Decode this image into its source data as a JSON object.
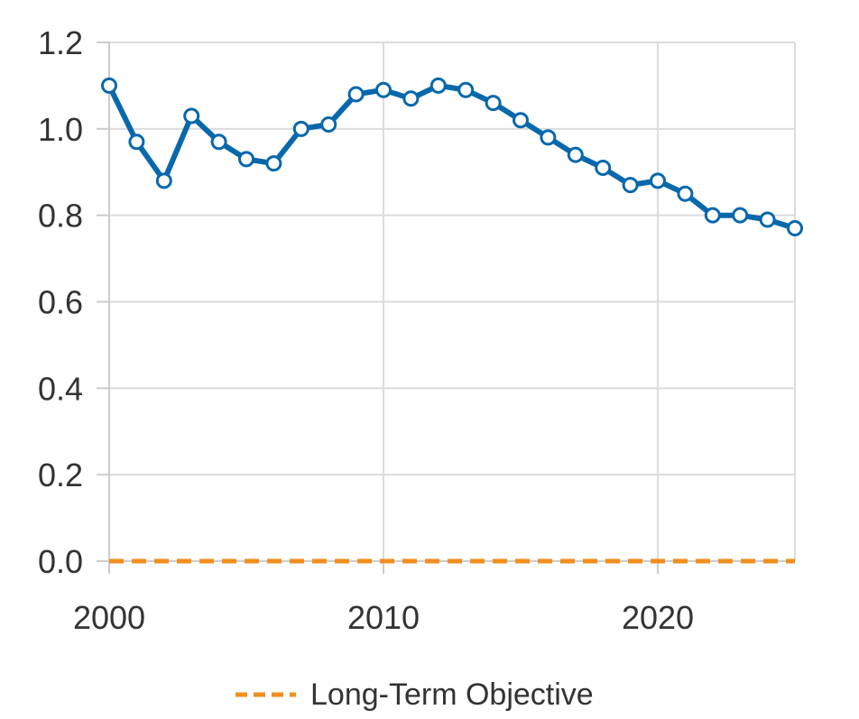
{
  "chart_data": {
    "type": "line",
    "title": "",
    "xlabel": "",
    "ylabel": "",
    "xlim": [
      2000,
      2025
    ],
    "ylim": [
      0,
      1.2
    ],
    "x_ticks": [
      "2000",
      "2010",
      "2020"
    ],
    "y_ticks": [
      "0.0",
      "0.2",
      "0.4",
      "0.6",
      "0.8",
      "1.0",
      "1.2"
    ],
    "grid": true,
    "legend_position": "bottom",
    "series": [
      {
        "color": "#0868ac",
        "style": "solid",
        "marker": "circle",
        "x": [
          2000,
          2001,
          2002,
          2003,
          2004,
          2005,
          2006,
          2007,
          2008,
          2009,
          2010,
          2011,
          2012,
          2013,
          2014,
          2015,
          2016,
          2017,
          2018,
          2019,
          2020,
          2021,
          2022,
          2023,
          2024,
          2025
        ],
        "values": [
          1.1,
          0.97,
          0.88,
          1.03,
          0.97,
          0.93,
          0.92,
          1.0,
          1.01,
          1.08,
          1.09,
          1.07,
          1.1,
          1.09,
          1.06,
          1.02,
          0.98,
          0.94,
          0.91,
          0.87,
          0.88,
          0.85,
          0.8,
          0.8,
          0.79,
          0.77
        ]
      },
      {
        "name": "Long-Term Objective",
        "color": "#f28e1c",
        "style": "dashed",
        "x": [
          2000,
          2025
        ],
        "values": [
          0,
          0
        ]
      }
    ]
  }
}
